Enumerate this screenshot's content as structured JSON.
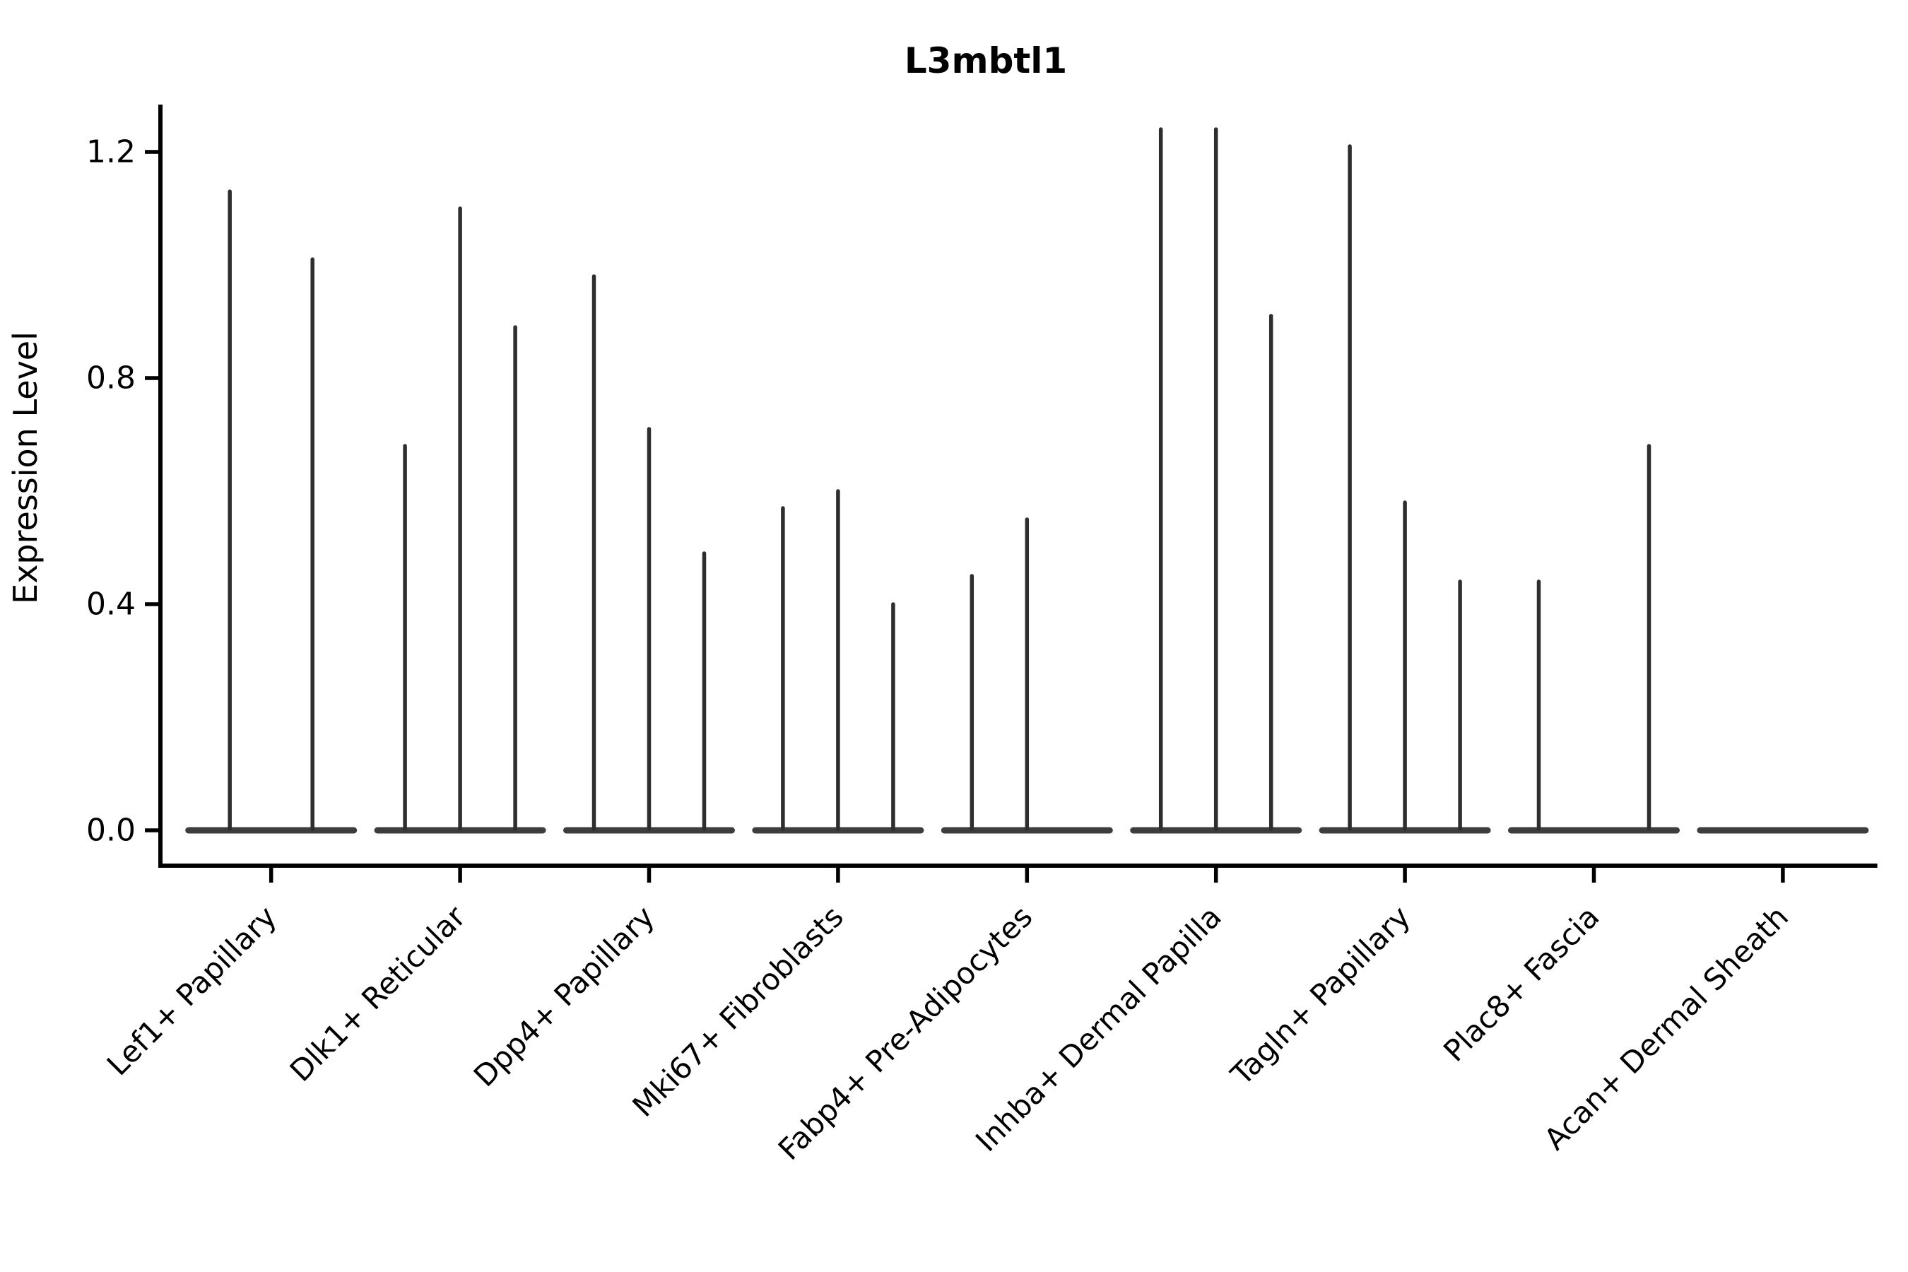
{
  "chart_data": {
    "type": "violin",
    "title": "L3mbtl1",
    "xlabel": "",
    "ylabel": "Expression Level",
    "background_color": "#ffffff",
    "grid": false,
    "legend": "none",
    "ylim": [
      -0.07,
      1.29
    ],
    "ytick_values": [
      0.0,
      0.4,
      0.8,
      1.2
    ],
    "ytick_labels": [
      "0.0",
      "0.4",
      "0.8",
      "1.2"
    ],
    "xtick_label_rotation_deg": 45,
    "categories": [
      "Lef1+ Papillary",
      "Dlk1+ Reticular",
      "Dpp4+ Papillary",
      "Mki67+ Fibroblasts",
      "Fabp4+ Pre-Adipocytes",
      "Inhba+ Dermal Papilla",
      "Tagln+ Papillary",
      "Plac8+ Fascia",
      "Acan+ Dermal Sheath"
    ],
    "violin_description": "Each category holds 2-3 narrow violins; bulk of cells at expression 0 (flat baseline blob) with a thin spike up to the max expression value listed",
    "violin_max_values": [
      [
        1.13,
        1.01
      ],
      [
        0.68,
        1.1,
        0.89
      ],
      [
        0.98,
        0.71,
        0.49
      ],
      [
        0.57,
        0.6,
        0.4
      ],
      [
        0.45,
        0.55,
        0.0
      ],
      [
        1.24,
        1.24,
        0.91
      ],
      [
        1.21,
        0.58,
        0.44
      ],
      [
        0.44,
        0.0,
        0.68
      ],
      [
        0.0,
        0.0
      ]
    ],
    "colors": {
      "spike": "#2e2e2e",
      "baseline_blob": "#3d3d3d",
      "axis": "#000000",
      "text": "#000000",
      "background": "#ffffff"
    }
  }
}
